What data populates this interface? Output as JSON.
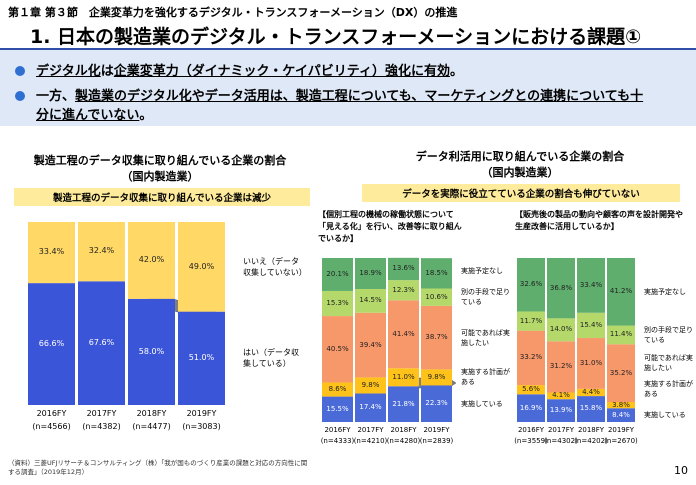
{
  "header": {
    "chapter": "第１章 第３節　企業変革力を強化するデジタル・トランスフォーメーション（DX）の推進",
    "title": "1.  日本の製造業のデジタル・トランスフォーメーションにおける課題①"
  },
  "bullets": [
    [
      {
        "text": "デジタル化",
        "underline": true
      },
      {
        "text": "は"
      },
      {
        "text": "企業変革力（ダイナミック・ケイパビリティ）強化に有効",
        "underline": true
      },
      {
        "text": "。"
      }
    ],
    [
      {
        "text": "一方、"
      },
      {
        "text": "製造業のデジタル化やデータ活用は、製造工程についても、マーケティングとの連携についても十分に進んでいない",
        "underline": true
      },
      {
        "text": "。"
      }
    ]
  ],
  "chart_data": [
    {
      "type": "stacked_bar",
      "title": "製造工程のデータ収集に取り組んでいる企業の割合",
      "subtitle": "（国内製造業）",
      "annotation": "製造工程のデータ収集に取り組んでいる企業は減少",
      "categories": [
        "2016FY",
        "2017FY",
        "2018FY",
        "2019FY"
      ],
      "category_notes": [
        "(n=4566)",
        "(n=4382)",
        "(n=4477)",
        "(n=3083)"
      ],
      "ylim": [
        0,
        100
      ],
      "series": [
        {
          "name": "はい（データ収集している）",
          "color": "#3b55d9",
          "values": [
            66.6,
            67.6,
            58.0,
            51.0
          ],
          "value_labels": [
            "66.6%",
            "67.6%",
            "58.0%",
            "51.0%"
          ]
        },
        {
          "name": "いいえ（データ収集していない）",
          "color": "#ffd866",
          "values": [
            33.4,
            32.4,
            42.0,
            49.0
          ],
          "value_labels": [
            "33.4%",
            "32.4%",
            "42.0%",
            "49.0%"
          ]
        }
      ]
    },
    {
      "type": "stacked_bar",
      "title": "データ利活用に取り組んでいる企業の割合",
      "subtitle": "（国内製造業）",
      "annotation": "データを実際に役立てている企業の割合も伸びていない",
      "panel_title": "【個別工程の機械の稼働状態について「見える化」を行い、改善等に取り組んでいるか】",
      "categories": [
        "2016FY",
        "2017FY",
        "2018FY",
        "2019FY"
      ],
      "category_notes": [
        "(n=4333)",
        "(n=4210)",
        "(n=4280)",
        "(n=2839)"
      ],
      "ylim": [
        0,
        100
      ],
      "series": [
        {
          "name": "実施している",
          "color": "#4a6ad8",
          "values": [
            15.5,
            17.4,
            21.8,
            22.3
          ],
          "value_labels": [
            "15.5%",
            "17.4%",
            "21.8%",
            "22.3%"
          ]
        },
        {
          "name": "実施する計画がある",
          "color": "#ffc21a",
          "values": [
            8.6,
            9.8,
            11.0,
            9.8
          ],
          "value_labels": [
            "8.6%",
            "9.8%",
            "11.0%",
            "9.8%"
          ]
        },
        {
          "name": "可能であれば実施したい",
          "color": "#f7986b",
          "values": [
            40.5,
            39.4,
            41.4,
            38.7
          ],
          "value_labels": [
            "40.5%",
            "39.4%",
            "41.4%",
            "38.7%"
          ]
        },
        {
          "name": "別の手段で足りている",
          "color": "#b4d96a",
          "values": [
            15.3,
            14.5,
            12.3,
            10.6
          ],
          "value_labels": [
            "15.3%",
            "14.5%",
            "12.3%",
            "10.6%"
          ]
        },
        {
          "name": "実施予定なし",
          "color": "#5fae6e",
          "values": [
            20.1,
            18.9,
            13.6,
            18.5
          ],
          "value_labels": [
            "20.1%",
            "18.9%",
            "13.6%",
            "18.5%"
          ]
        }
      ]
    },
    {
      "type": "stacked_bar",
      "panel_title": "【販売後の製品の動向や顧客の声を設計開発や生産改善に活用しているか】",
      "categories": [
        "2016FY",
        "2017FY",
        "2018FY",
        "2019FY"
      ],
      "category_notes": [
        "(n=3559)",
        "(n=4302)",
        "(n=4202)",
        "(n=2670)"
      ],
      "ylim": [
        0,
        100
      ],
      "series": [
        {
          "name": "実施している",
          "color": "#4a6ad8",
          "values": [
            16.9,
            13.9,
            15.8,
            8.4
          ],
          "value_labels": [
            "16.9%",
            "13.9%",
            "15.8%",
            "8.4%"
          ]
        },
        {
          "name": "実施する計画がある",
          "color": "#ffc21a",
          "values": [
            5.6,
            4.1,
            4.4,
            3.8
          ],
          "value_labels": [
            "5.6%",
            "4.1%",
            "4.4%",
            "3.8%"
          ]
        },
        {
          "name": "可能であれば実施したい",
          "color": "#f7986b",
          "values": [
            33.2,
            31.2,
            31.0,
            35.2
          ],
          "value_labels": [
            "33.2%",
            "31.2%",
            "31.0%",
            "35.2%"
          ]
        },
        {
          "name": "別の手段で足りている",
          "color": "#b4d96a",
          "values": [
            11.7,
            14.0,
            15.4,
            11.4
          ],
          "value_labels": [
            "11.7%",
            "14.0%",
            "15.4%",
            "11.4%"
          ]
        },
        {
          "name": "実施予定なし",
          "color": "#5fae6e",
          "values": [
            32.6,
            36.8,
            33.4,
            41.2
          ],
          "value_labels": [
            "32.6%",
            "36.8%",
            "33.4%",
            "41.2%"
          ]
        }
      ]
    }
  ],
  "source": "（資料）三菱UFJリサーチ＆コンサルティング（株）「我が国ものづくり産業の課題と対応の方向性に関する調査」（2019年12月）",
  "page_number": "10"
}
